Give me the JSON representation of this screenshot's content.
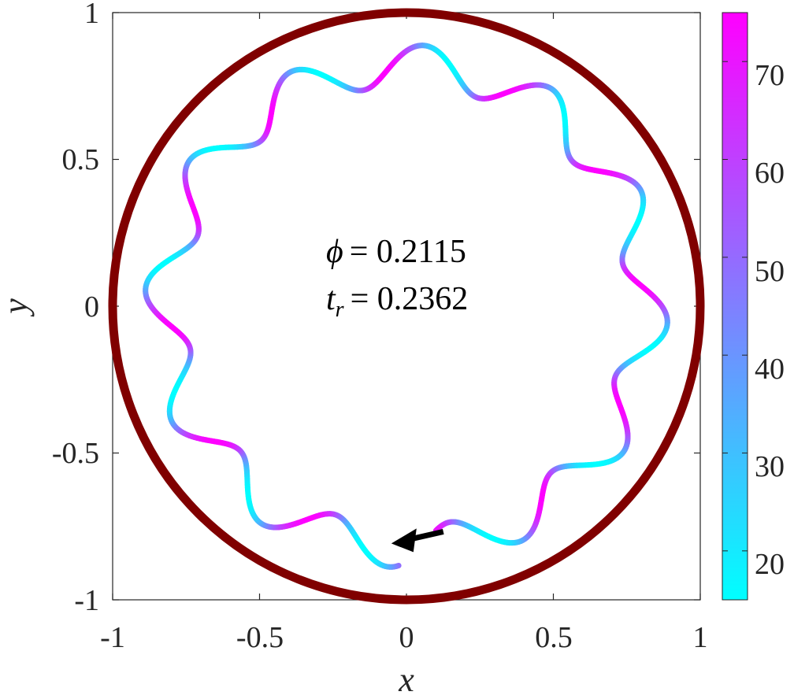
{
  "chart_data": {
    "type": "line",
    "title": "",
    "xlabel": "x",
    "ylabel": "y",
    "xlim": [
      -1,
      1
    ],
    "ylim": [
      -1,
      1
    ],
    "xticks": [
      -1,
      -0.5,
      0,
      0.5,
      1
    ],
    "xtick_labels": [
      "-1",
      "-0.5",
      "0",
      "0.5",
      "1"
    ],
    "yticks": [
      -1,
      -0.5,
      0,
      0.5,
      1
    ],
    "ytick_labels": [
      "-1",
      "-0.5",
      "0",
      "0.5",
      "1"
    ],
    "grid": false,
    "boundary": {
      "shape": "circle",
      "center": [
        0,
        0
      ],
      "radius": 1,
      "color": "#800000"
    },
    "trajectory": {
      "start": [
        0,
        -0.89
      ],
      "mean_radius": 0.82,
      "wave_amplitude": 0.07,
      "lobes": 12,
      "color_values_range": [
        15,
        75
      ],
      "colormap": "cool"
    },
    "arrow": {
      "at": [
        -0.03,
        -0.8
      ],
      "direction": "left",
      "color": "#000000"
    },
    "annotations": [
      {
        "symbol": "ϕ",
        "subscript": "",
        "value": "= 0.2115"
      },
      {
        "symbol": "t",
        "subscript": "r",
        "value": "= 0.2362"
      }
    ],
    "colorbar": {
      "range": [
        15,
        75
      ],
      "ticks": [
        20,
        30,
        40,
        50,
        60,
        70
      ],
      "tick_labels": [
        "20",
        "30",
        "40",
        "50",
        "60",
        "70"
      ],
      "colors": [
        "#00ffff",
        "#ff00ff"
      ]
    }
  }
}
